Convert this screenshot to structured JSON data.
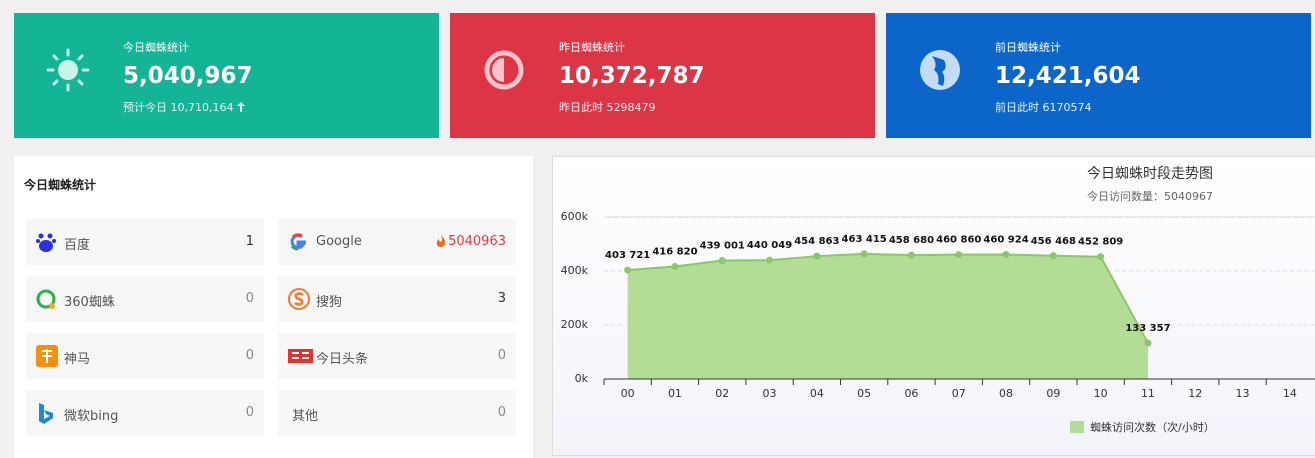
{
  "cards": [
    {
      "label": "今日蜘蛛统计",
      "value": "5,040,967",
      "sub": "预计今日 10,710,164"
    },
    {
      "label": "昨日蜘蛛统计",
      "value": "10,372,787",
      "sub": "昨日此时 5298479"
    },
    {
      "label": "前日蜘蛛统计",
      "value": "12,421,604",
      "sub": "前日此时 6170574"
    }
  ],
  "panel": {
    "title": "今日蜘蛛统计",
    "items": [
      {
        "name": "百度",
        "value": 1
      },
      {
        "name": "Google",
        "value": 5040963
      },
      {
        "name": "360蜘蛛",
        "value": 0
      },
      {
        "name": "搜狗",
        "value": 3
      },
      {
        "name": "神马",
        "value": 0
      },
      {
        "name": "今日头条",
        "value": 0
      },
      {
        "name": "微软bing",
        "value": 0
      },
      {
        "name": "其他",
        "value": 0
      }
    ]
  },
  "chart_data": {
    "type": "area",
    "title": "今日蜘蛛时段走势图",
    "subtitle": "今日访问数量：5040967",
    "categories": [
      "00",
      "01",
      "02",
      "03",
      "04",
      "05",
      "06",
      "07",
      "08",
      "09",
      "10",
      "11",
      "12",
      "13",
      "14"
    ],
    "series": [
      {
        "name": "蜘蛛访问次数（次/小时）",
        "color": "#b3dc94",
        "line_color": "#8cc66a",
        "values": [
          403721,
          416820,
          439001,
          440049,
          454863,
          463415,
          458680,
          460860,
          460924,
          456468,
          452809,
          133357,
          null,
          null,
          null
        ],
        "value_labels": [
          "403 721",
          "416 820",
          "439 001",
          "440 049",
          "454 863",
          "463 415",
          "458 680",
          "460 860",
          "460 924",
          "456 468",
          "452 809",
          "133 357",
          null,
          null,
          null
        ]
      }
    ],
    "ylim": [
      0,
      600000
    ],
    "yticks": [
      {
        "value": 0,
        "label": "0k"
      },
      {
        "value": 200000,
        "label": "200k"
      },
      {
        "value": 400000,
        "label": "400k"
      },
      {
        "value": 600000,
        "label": "600k"
      }
    ],
    "grid": true,
    "legend": "bottom"
  }
}
